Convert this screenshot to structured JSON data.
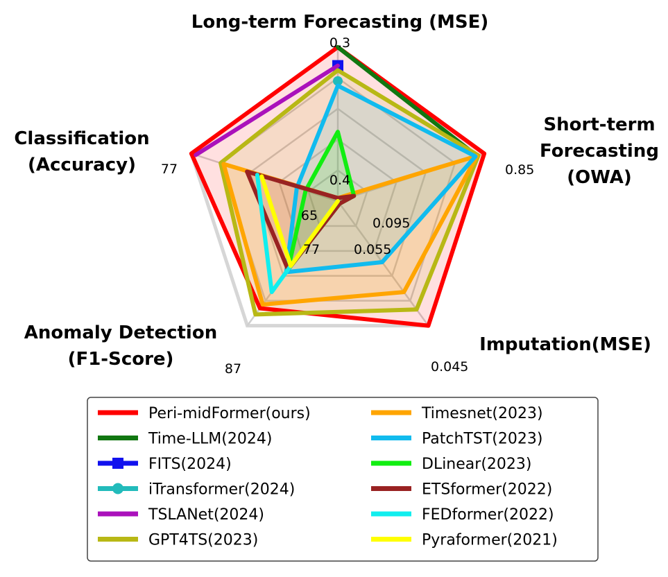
{
  "chart_data": {
    "type": "radar",
    "title": "",
    "axes": [
      {
        "label_lines": [
          "Long-term Forecasting (MSE)"
        ],
        "outer_tick": "0.3",
        "inner_tick": "0.4",
        "lower_is_better": true
      },
      {
        "label_lines": [
          "Short-term",
          "Forecasting",
          "(OWA)"
        ],
        "outer_tick": "0.85",
        "inner_tick": "0.095",
        "lower_is_better": true
      },
      {
        "label_lines": [
          "Imputation(MSE)"
        ],
        "outer_tick": "0.045",
        "inner_tick": "0.055",
        "lower_is_better": true
      },
      {
        "label_lines": [
          "Anomaly Detection",
          "(F1-Score)"
        ],
        "outer_tick": "87",
        "inner_tick": "77",
        "lower_is_better": false
      },
      {
        "label_lines": [
          "Classification",
          "(Accuracy)"
        ],
        "outer_tick": "77",
        "inner_tick": "65",
        "lower_is_better": false
      }
    ],
    "series_order_note": "",
    "series": [
      {
        "name": "Peri-midFormer(ours)",
        "color": "#ff0000",
        "marker": "none",
        "values": [
          1.0,
          1.0,
          1.0,
          0.86,
          1.0
        ]
      },
      {
        "name": "Time-LLM(2024)",
        "color": "#117711",
        "marker": "none",
        "values": [
          1.0,
          0.95,
          null,
          null,
          null
        ]
      },
      {
        "name": "FITS(2024)",
        "color": "#1111ee",
        "marker": "square",
        "values": [
          0.88,
          null,
          null,
          null,
          null
        ]
      },
      {
        "name": "iTransformer(2024)",
        "color": "#22bbbb",
        "marker": "circle",
        "values": [
          0.78,
          null,
          null,
          null,
          null
        ]
      },
      {
        "name": "TSLANet(2024)",
        "color": "#aa11bb",
        "marker": "none",
        "values": [
          0.88,
          null,
          null,
          null,
          0.97
        ]
      },
      {
        "name": "GPT4TS(2023)",
        "color": "#b8b815",
        "marker": "none",
        "values": [
          0.85,
          0.96,
          0.87,
          0.91,
          0.8
        ]
      },
      {
        "name": "Timesnet(2023)",
        "color": "#ffa500",
        "marker": "none",
        "values": [
          0.02,
          0.95,
          0.73,
          0.83,
          0.78
        ]
      },
      {
        "name": "PatchTST(2023)",
        "color": "#11bbee",
        "marker": "none",
        "values": [
          0.75,
          0.94,
          0.49,
          0.57,
          0.28
        ]
      },
      {
        "name": "DLinear(2023)",
        "color": "#11ee11",
        "marker": "none",
        "values": [
          0.45,
          0.11,
          0.02,
          0.55,
          0.22
        ]
      },
      {
        "name": "ETSformer(2022)",
        "color": "#992222",
        "marker": "none",
        "values": [
          0.02,
          0.11,
          0.02,
          0.55,
          0.62
        ]
      },
      {
        "name": "FEDformer(2022)",
        "color": "#11eeee",
        "marker": "none",
        "values": [
          null,
          0.0,
          0.0,
          0.73,
          0.55
        ]
      },
      {
        "name": "Pyraformer(2021)",
        "color": "#ffff00",
        "marker": "none",
        "values": [
          null,
          0.0,
          0.0,
          0.52,
          0.52
        ]
      }
    ],
    "grid": true,
    "legend": {
      "position": "bottom",
      "columns": 2
    }
  }
}
